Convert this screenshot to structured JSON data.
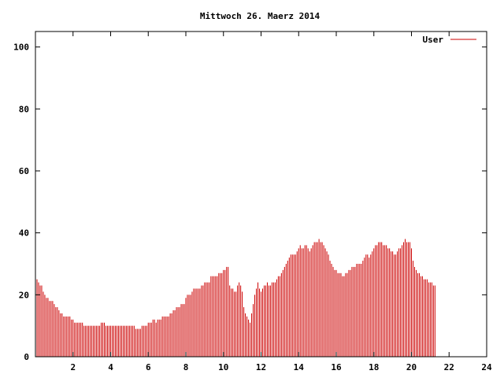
{
  "chart_data": {
    "type": "bar",
    "title": "Mittwoch 26. Maerz 2014",
    "xlabel": "",
    "ylabel": "",
    "xlim": [
      0,
      24
    ],
    "ylim": [
      0,
      105
    ],
    "xticks": [
      2,
      4,
      6,
      8,
      10,
      12,
      14,
      16,
      18,
      20,
      22,
      24
    ],
    "yticks": [
      0,
      20,
      40,
      60,
      80,
      100
    ],
    "grid": false,
    "legend": "top-right",
    "color": "#cc0000",
    "series": [
      {
        "name": "User",
        "x_start": 0,
        "x_step": 0.0833333,
        "values": [
          25,
          25,
          24,
          23,
          23,
          21,
          20,
          19,
          19,
          18,
          18,
          18,
          17,
          16,
          16,
          15,
          14,
          14,
          13,
          13,
          13,
          13,
          13,
          12,
          12,
          11,
          11,
          11,
          11,
          11,
          11,
          10,
          10,
          10,
          10,
          10,
          10,
          10,
          10,
          10,
          10,
          10,
          11,
          11,
          11,
          10,
          10,
          10,
          10,
          10,
          10,
          10,
          10,
          10,
          10,
          10,
          10,
          10,
          10,
          10,
          10,
          10,
          10,
          10,
          9,
          9,
          9,
          9,
          10,
          10,
          10,
          10,
          11,
          11,
          11,
          12,
          12,
          11,
          12,
          12,
          12,
          13,
          13,
          13,
          13,
          13,
          14,
          14,
          15,
          15,
          16,
          16,
          16,
          17,
          17,
          17,
          19,
          20,
          20,
          20,
          21,
          22,
          22,
          22,
          22,
          22,
          23,
          23,
          24,
          24,
          24,
          24,
          26,
          26,
          26,
          26,
          26,
          27,
          27,
          27,
          28,
          28,
          29,
          29,
          23,
          22,
          22,
          21,
          21,
          23,
          24,
          23,
          21,
          16,
          14,
          13,
          12,
          11,
          14,
          17,
          20,
          22,
          24,
          22,
          21,
          22,
          23,
          23,
          24,
          23,
          23,
          24,
          24,
          24,
          25,
          26,
          26,
          27,
          28,
          29,
          30,
          31,
          32,
          33,
          33,
          33,
          33,
          34,
          35,
          36,
          35,
          35,
          36,
          36,
          35,
          34,
          35,
          36,
          37,
          37,
          37,
          38,
          37,
          37,
          36,
          35,
          34,
          33,
          31,
          30,
          29,
          28,
          28,
          27,
          27,
          27,
          26,
          26,
          27,
          27,
          28,
          28,
          29,
          29,
          29,
          30,
          30,
          30,
          30,
          31,
          32,
          33,
          33,
          32,
          33,
          34,
          35,
          36,
          36,
          37,
          37,
          37,
          36,
          36,
          36,
          35,
          35,
          34,
          34,
          33,
          33,
          34,
          35,
          35,
          36,
          37,
          38,
          37,
          37,
          37,
          35,
          31,
          29,
          28,
          27,
          27,
          26,
          26,
          25,
          25,
          25,
          24,
          24,
          24,
          23,
          23
        ]
      }
    ]
  }
}
